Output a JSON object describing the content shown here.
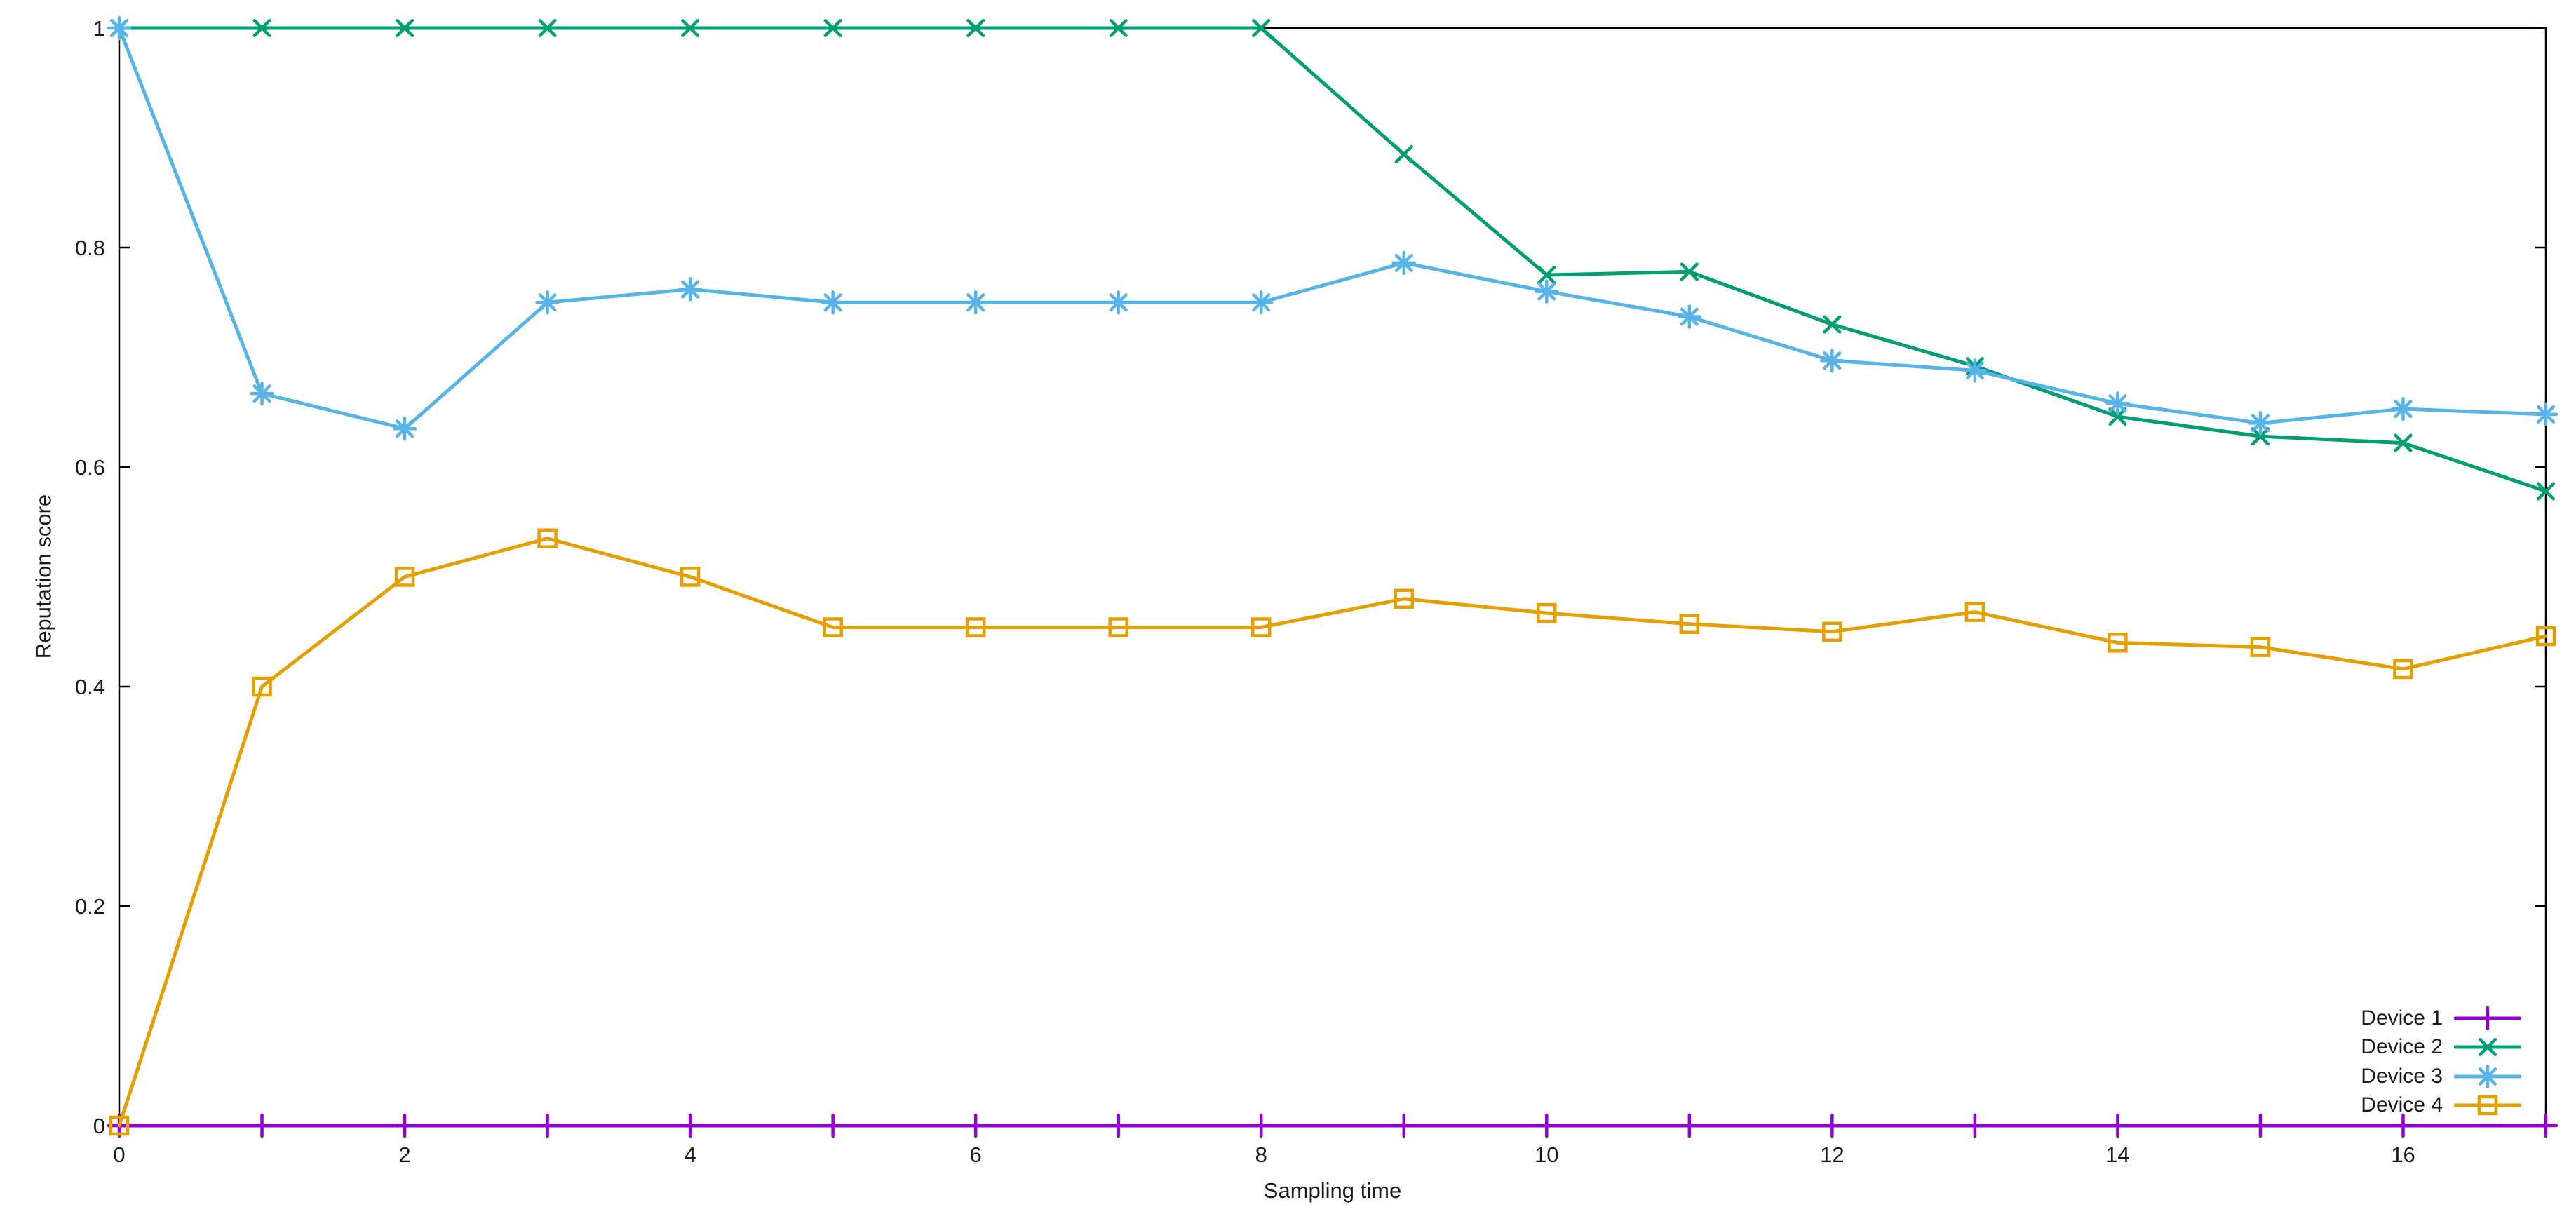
{
  "chart_data": {
    "type": "line",
    "title": "",
    "xlabel": "Sampling time",
    "ylabel": "Reputation score",
    "xlim": [
      0,
      17
    ],
    "ylim": [
      0,
      1
    ],
    "x_ticks": [
      0,
      2,
      4,
      6,
      8,
      10,
      12,
      14,
      16
    ],
    "x_tick_labels": [
      "0",
      "2",
      "4",
      "6",
      "8",
      "10",
      "12",
      "14",
      "16"
    ],
    "y_ticks": [
      0,
      0.2,
      0.4,
      0.6,
      0.8,
      1
    ],
    "y_tick_labels": [
      "0",
      "0.2",
      "0.4",
      "0.6",
      "0.8",
      "1"
    ],
    "grid": false,
    "legend_position": "inside-bottom-right",
    "background_color": "#ffffff",
    "axis_color": "#000000",
    "text_color": "#1a1a1a",
    "x": [
      0,
      1,
      2,
      3,
      4,
      5,
      6,
      7,
      8,
      9,
      10,
      11,
      12,
      13,
      14,
      15,
      16,
      17
    ],
    "series": [
      {
        "name": "Device 1",
        "color": "#9400d3",
        "marker": "plus",
        "values": [
          0,
          0,
          0,
          0,
          0,
          0,
          0,
          0,
          0,
          0,
          0,
          0,
          0,
          0,
          0,
          0,
          0,
          0
        ]
      },
      {
        "name": "Device 2",
        "color": "#009e73",
        "marker": "cross",
        "values": [
          1.0,
          1.0,
          1.0,
          1.0,
          1.0,
          1.0,
          1.0,
          1.0,
          1.0,
          0.885,
          0.775,
          0.778,
          0.73,
          0.692,
          0.646,
          0.628,
          0.622,
          0.578
        ]
      },
      {
        "name": "Device 3",
        "color": "#56b4e9",
        "marker": "asterisk",
        "values": [
          1.0,
          0.667,
          0.635,
          0.75,
          0.762,
          0.75,
          0.75,
          0.75,
          0.75,
          0.786,
          0.76,
          0.737,
          0.697,
          0.688,
          0.658,
          0.64,
          0.653,
          0.648
        ]
      },
      {
        "name": "Device 4",
        "color": "#e69f00",
        "marker": "square",
        "values": [
          0,
          0.4,
          0.5,
          0.535,
          0.5,
          0.454,
          0.454,
          0.454,
          0.454,
          0.48,
          0.467,
          0.457,
          0.45,
          0.468,
          0.44,
          0.436,
          0.416,
          0.446
        ]
      }
    ]
  }
}
